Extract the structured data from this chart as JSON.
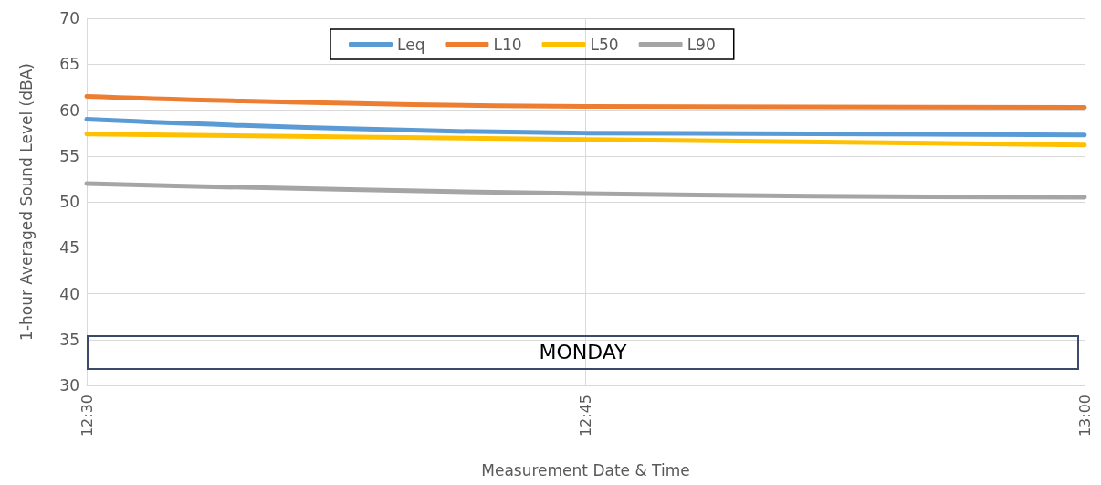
{
  "chart_data": {
    "type": "line",
    "xlabel": "Measurement Date & Time",
    "ylabel": "1-hour Averaged Sound Level (dBA)",
    "x": [
      12.5,
      12.75,
      13
    ],
    "xlim": [
      12.5,
      13
    ],
    "xticks": [
      {
        "value": 12.5,
        "label": "12:30"
      },
      {
        "value": 12.75,
        "label": "12:45"
      },
      {
        "value": 13,
        "label": "13:00"
      }
    ],
    "ylim": [
      30,
      70
    ],
    "yticks": [
      30,
      35,
      40,
      45,
      50,
      55,
      60,
      65,
      70
    ],
    "series": [
      {
        "name": "Leq",
        "color": "#5b9bd5",
        "values": [
          59,
          57.5,
          57.3
        ]
      },
      {
        "name": "L10",
        "color": "#ed7d31",
        "values": [
          61.5,
          60.4,
          60.3
        ]
      },
      {
        "name": "L50",
        "color": "#ffc000",
        "values": [
          57.4,
          56.8,
          56.2
        ]
      },
      {
        "name": "L90",
        "color": "#a5a5a5",
        "values": [
          52,
          50.9,
          50.5
        ]
      }
    ],
    "annotations": [
      "MONDAY"
    ],
    "grid": true,
    "legend": "top",
    "marker": "none",
    "line_style": "solid"
  }
}
